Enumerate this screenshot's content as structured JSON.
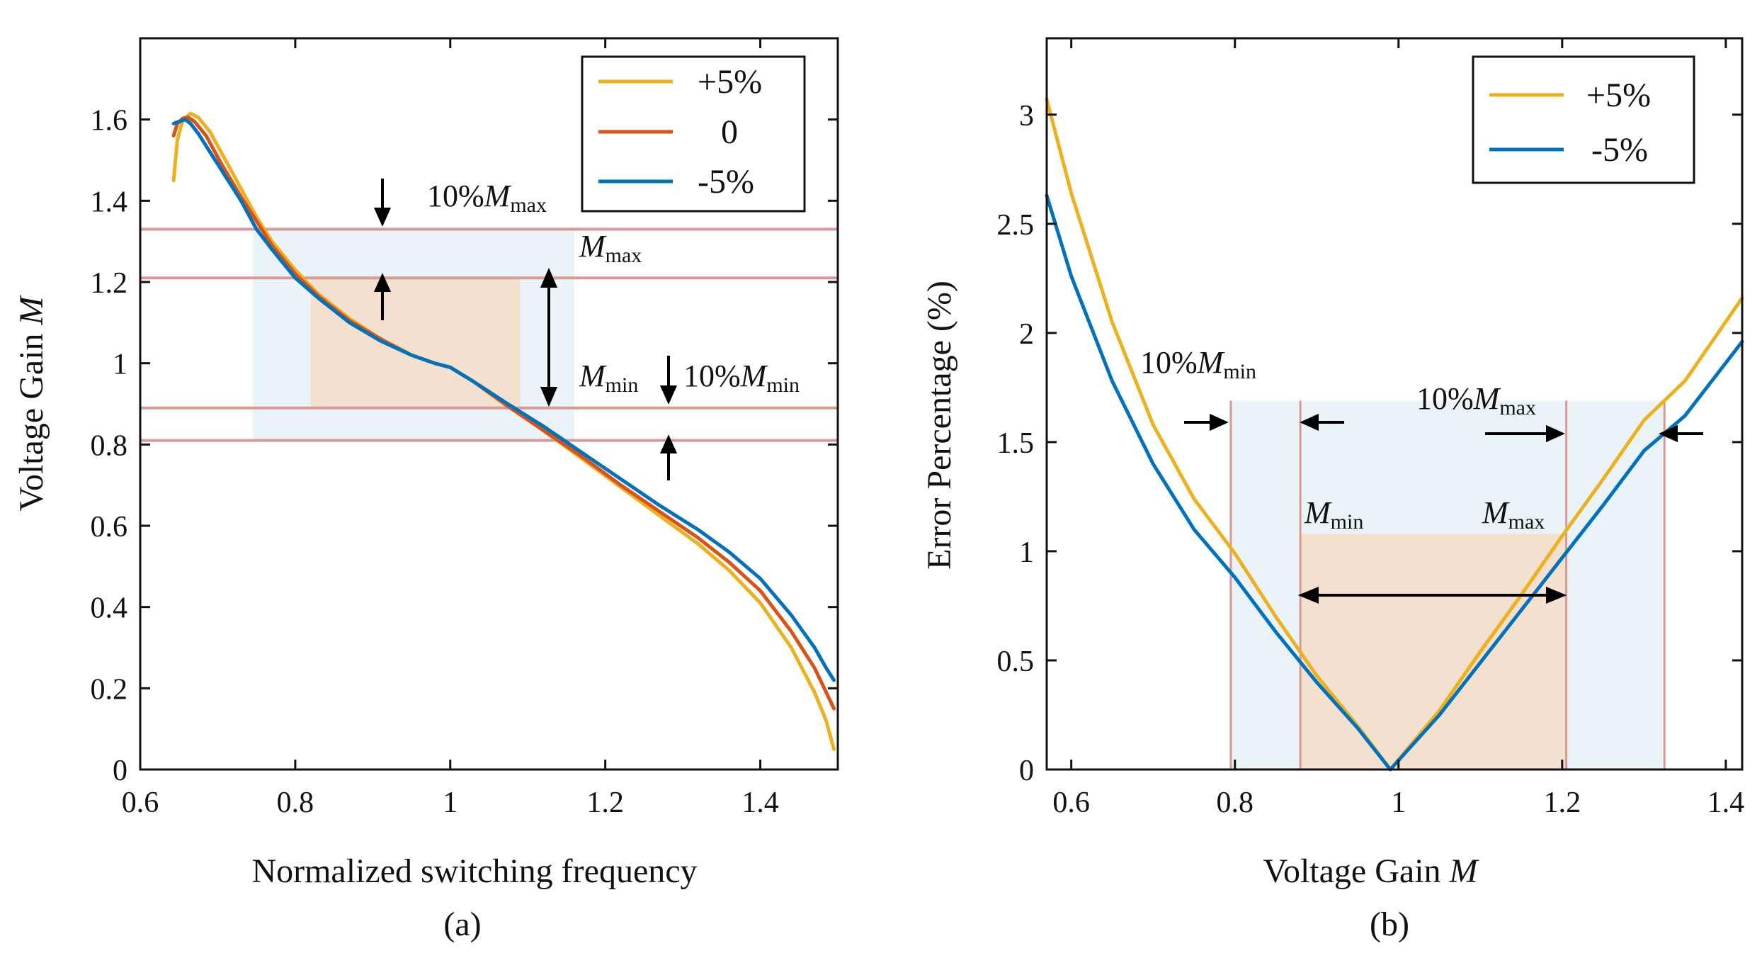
{
  "chart_data": [
    {
      "id": "a",
      "type": "line",
      "caption": "(a)",
      "xlabel": "Normalized switching frequency",
      "ylabel": "Voltage Gain",
      "ylabel_var": "M",
      "xlim": [
        0.6,
        1.5
      ],
      "ylim": [
        0,
        1.8
      ],
      "xticks": [
        0.6,
        0.8,
        1,
        1.2,
        1.4
      ],
      "xtick_labels": [
        "0.6",
        "0.8",
        "1",
        "1.2",
        "1.4"
      ],
      "yticks": [
        0,
        0.2,
        0.4,
        0.6,
        0.8,
        1,
        1.2,
        1.4,
        1.6
      ],
      "ytick_labels": [
        "0",
        "0.2",
        "0.4",
        "0.6",
        "0.8",
        "1",
        "1.2",
        "1.4",
        "1.6"
      ],
      "legend": {
        "position": "top-right",
        "entries": [
          "+5%",
          "0",
          "-5%"
        ]
      },
      "series": [
        {
          "name": "+5%",
          "color": "#EDB120",
          "x": [
            0.643,
            0.648,
            0.655,
            0.665,
            0.675,
            0.69,
            0.71,
            0.73,
            0.75,
            0.77,
            0.8,
            0.83,
            0.87,
            0.91,
            0.95,
            0.98,
            1.0,
            1.03,
            1.07,
            1.12,
            1.17,
            1.22,
            1.27,
            1.32,
            1.36,
            1.4,
            1.44,
            1.47,
            1.485,
            1.495
          ],
          "y": [
            1.45,
            1.55,
            1.6,
            1.615,
            1.605,
            1.57,
            1.5,
            1.43,
            1.36,
            1.3,
            1.23,
            1.17,
            1.11,
            1.06,
            1.02,
            1.0,
            0.99,
            0.955,
            0.9,
            0.835,
            0.765,
            0.695,
            0.625,
            0.555,
            0.49,
            0.41,
            0.3,
            0.19,
            0.12,
            0.05
          ]
        },
        {
          "name": "0",
          "color": "#D95319",
          "x": [
            0.643,
            0.648,
            0.655,
            0.662,
            0.67,
            0.685,
            0.705,
            0.73,
            0.75,
            0.77,
            0.8,
            0.83,
            0.87,
            0.91,
            0.95,
            0.98,
            1.0,
            1.03,
            1.07,
            1.12,
            1.17,
            1.22,
            1.27,
            1.32,
            1.36,
            1.4,
            1.44,
            1.47,
            1.485,
            1.495
          ],
          "y": [
            1.56,
            1.59,
            1.603,
            1.605,
            1.595,
            1.56,
            1.49,
            1.41,
            1.35,
            1.29,
            1.22,
            1.165,
            1.105,
            1.06,
            1.02,
            1.0,
            0.99,
            0.955,
            0.9,
            0.835,
            0.77,
            0.7,
            0.635,
            0.57,
            0.51,
            0.44,
            0.34,
            0.25,
            0.19,
            0.15
          ]
        },
        {
          "name": "-5%",
          "color": "#0072BD",
          "x": [
            0.643,
            0.65,
            0.658,
            0.665,
            0.675,
            0.69,
            0.71,
            0.73,
            0.75,
            0.77,
            0.8,
            0.83,
            0.87,
            0.91,
            0.95,
            0.98,
            1.0,
            1.03,
            1.07,
            1.12,
            1.17,
            1.22,
            1.27,
            1.32,
            1.36,
            1.4,
            1.44,
            1.47,
            1.485,
            1.495
          ],
          "y": [
            1.59,
            1.595,
            1.6,
            1.59,
            1.565,
            1.52,
            1.46,
            1.4,
            1.33,
            1.28,
            1.21,
            1.16,
            1.1,
            1.055,
            1.02,
            1.0,
            0.99,
            0.955,
            0.905,
            0.845,
            0.78,
            0.715,
            0.65,
            0.59,
            0.535,
            0.47,
            0.38,
            0.3,
            0.25,
            0.22
          ]
        }
      ],
      "hlines": [
        1.33,
        1.21,
        0.89,
        0.81
      ],
      "regions": [
        {
          "kind": "outer",
          "x": [
            0.745,
            1.16
          ],
          "y": [
            0.81,
            1.33
          ]
        },
        {
          "kind": "inner",
          "x": [
            0.82,
            1.09
          ],
          "y": [
            0.89,
            1.21
          ]
        }
      ],
      "annotations": {
        "tenpct_mmax": {
          "prefix": "10%",
          "var": "M",
          "sub": "max"
        },
        "mmax": {
          "var": "M",
          "sub": "max"
        },
        "mmin": {
          "var": "M",
          "sub": "min"
        },
        "tenpct_mmin": {
          "prefix": "10%",
          "var": "M",
          "sub": "min"
        }
      }
    },
    {
      "id": "b",
      "type": "line",
      "caption": "(b)",
      "xlabel": "Voltage Gain",
      "xlabel_var": "M",
      "ylabel": "Error Percentage (%)",
      "xlim": [
        0.57,
        1.42
      ],
      "ylim": [
        0,
        3.35
      ],
      "xticks": [
        0.6,
        0.8,
        1,
        1.2,
        1.4
      ],
      "xtick_labels": [
        "0.6",
        "0.8",
        "1",
        "1.2",
        "1.4"
      ],
      "yticks": [
        0,
        0.5,
        1,
        1.5,
        2,
        2.5,
        3
      ],
      "ytick_labels": [
        "0",
        "0.5",
        "1",
        "1.5",
        "2",
        "2.5",
        "3"
      ],
      "legend": {
        "position": "top-right",
        "entries": [
          "+5%",
          "-5%"
        ]
      },
      "series": [
        {
          "name": "+5%",
          "color": "#EDB120",
          "x": [
            0.57,
            0.6,
            0.65,
            0.7,
            0.75,
            0.8,
            0.85,
            0.9,
            0.95,
            0.99,
            1.05,
            1.1,
            1.15,
            1.2,
            1.25,
            1.3,
            1.35,
            1.42
          ],
          "y": [
            3.07,
            2.64,
            2.05,
            1.58,
            1.24,
            0.99,
            0.7,
            0.43,
            0.2,
            0.0,
            0.27,
            0.54,
            0.8,
            1.07,
            1.33,
            1.6,
            1.78,
            2.16
          ]
        },
        {
          "name": "-5%",
          "color": "#0072BD",
          "x": [
            0.57,
            0.6,
            0.65,
            0.7,
            0.75,
            0.8,
            0.85,
            0.9,
            0.95,
            0.99,
            1.05,
            1.1,
            1.15,
            1.2,
            1.25,
            1.3,
            1.35,
            1.42
          ],
          "y": [
            2.63,
            2.26,
            1.78,
            1.4,
            1.1,
            0.88,
            0.63,
            0.4,
            0.19,
            0.0,
            0.25,
            0.49,
            0.73,
            0.97,
            1.21,
            1.46,
            1.62,
            1.96
          ]
        }
      ],
      "vlines": [
        0.795,
        0.88,
        1.205,
        1.325
      ],
      "regions": [
        {
          "kind": "outer",
          "x": [
            0.795,
            1.325
          ],
          "y": [
            0,
            1.69
          ]
        },
        {
          "kind": "inner",
          "x": [
            0.88,
            1.205
          ],
          "y": [
            0,
            1.08
          ]
        }
      ],
      "annotations": {
        "tenpct_mmin": {
          "prefix": "10%",
          "var": "M",
          "sub": "min"
        },
        "tenpct_mmax": {
          "prefix": "10%",
          "var": "M",
          "sub": "max"
        },
        "mmin": {
          "var": "M",
          "sub": "min"
        },
        "mmax": {
          "var": "M",
          "sub": "max"
        }
      }
    }
  ],
  "colors": {
    "outer_region": "#EAF3F8",
    "inner_region": "#F4E0CE",
    "bound_line": "#D99A96",
    "axis": "#111111"
  }
}
